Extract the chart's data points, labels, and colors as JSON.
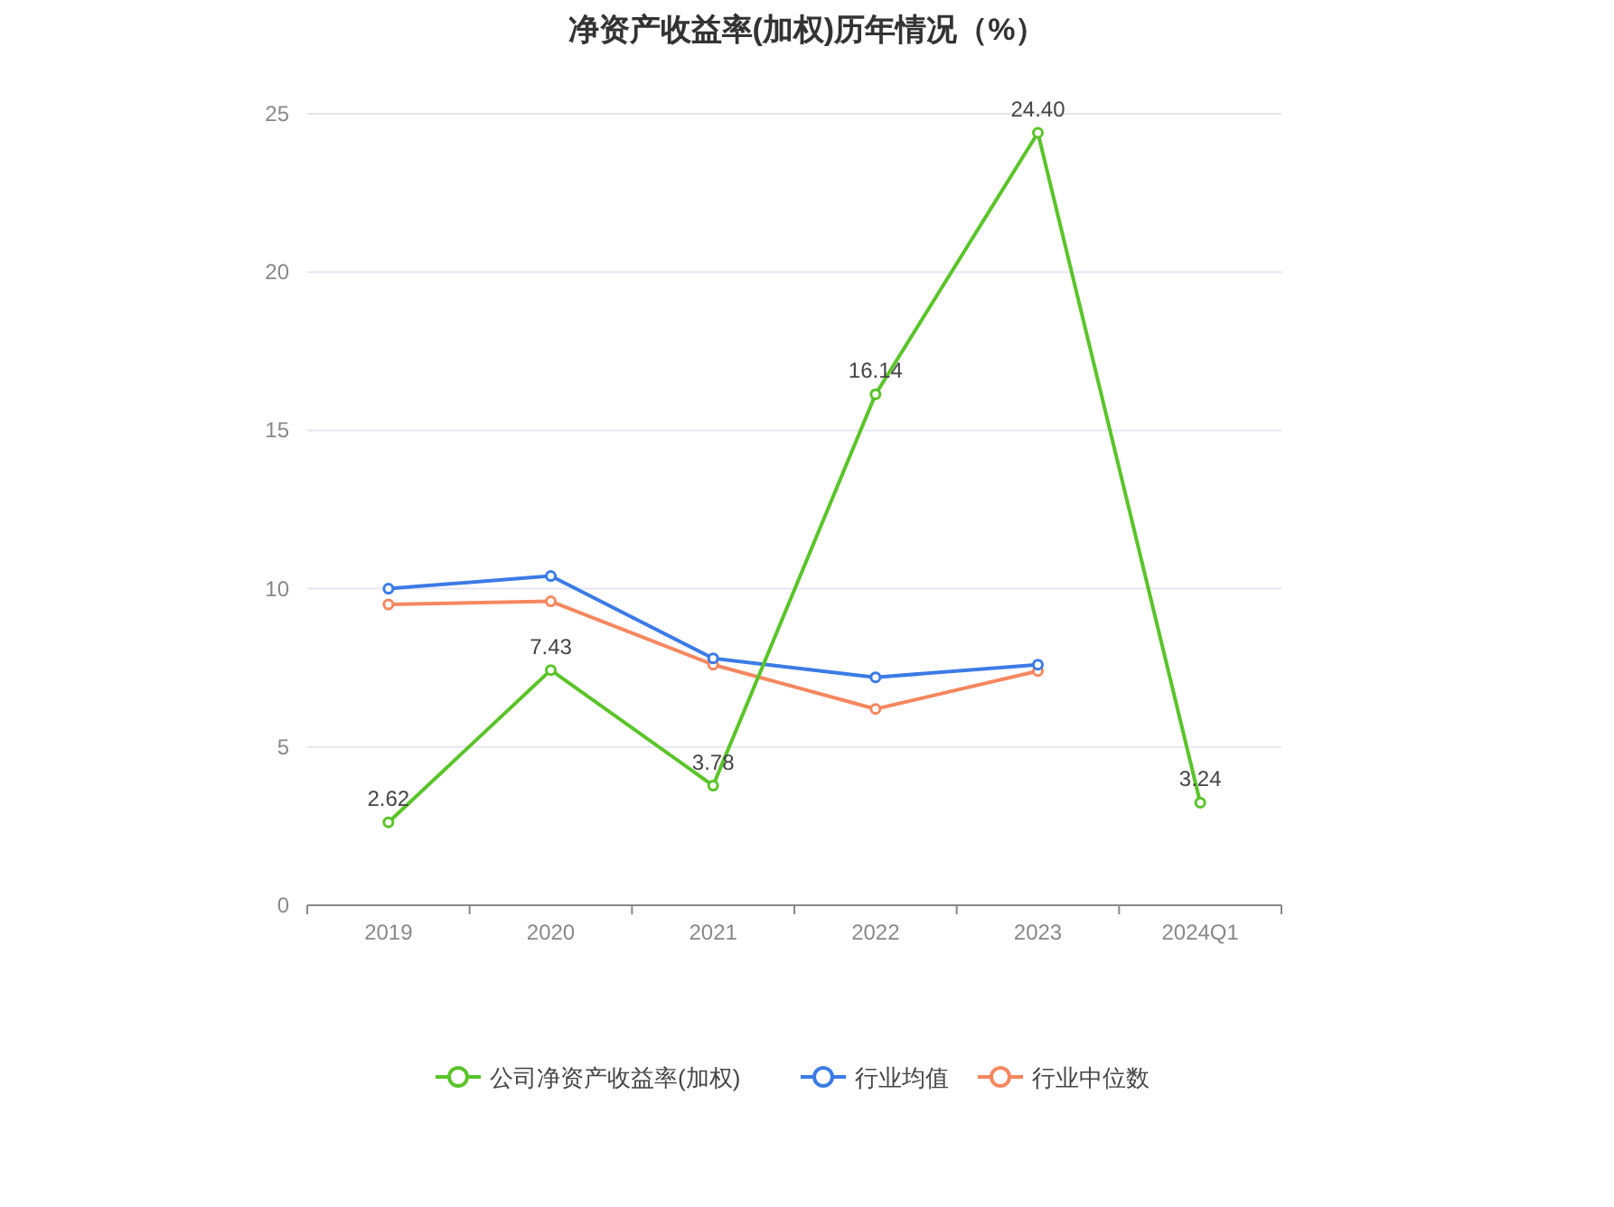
{
  "chart_data": {
    "type": "line",
    "title": "净资产收益率(加权)历年情况（%）",
    "categories": [
      "2019",
      "2020",
      "2021",
      "2022",
      "2023",
      "2024Q1"
    ],
    "ylim": [
      0,
      25
    ],
    "yticks": [
      0,
      5,
      10,
      15,
      20,
      25
    ],
    "grid": "y",
    "legend": "bottom",
    "marker": "circle",
    "line_style": "solid",
    "series": [
      {
        "name": "公司净资产收益率(加权)",
        "color": "#5ac42a",
        "values": [
          2.62,
          7.43,
          3.78,
          16.14,
          24.4,
          3.24
        ],
        "value_labels": [
          "2.62",
          "7.43",
          "3.78",
          "16.14",
          "24.40",
          "3.24"
        ]
      },
      {
        "name": "行业均值",
        "color": "#3b7be6",
        "values": [
          10.0,
          10.4,
          7.8,
          7.2,
          7.6,
          null
        ]
      },
      {
        "name": "行业中位数",
        "color": "#f5875f",
        "values": [
          9.5,
          9.6,
          7.6,
          6.2,
          7.4,
          null
        ]
      }
    ]
  }
}
